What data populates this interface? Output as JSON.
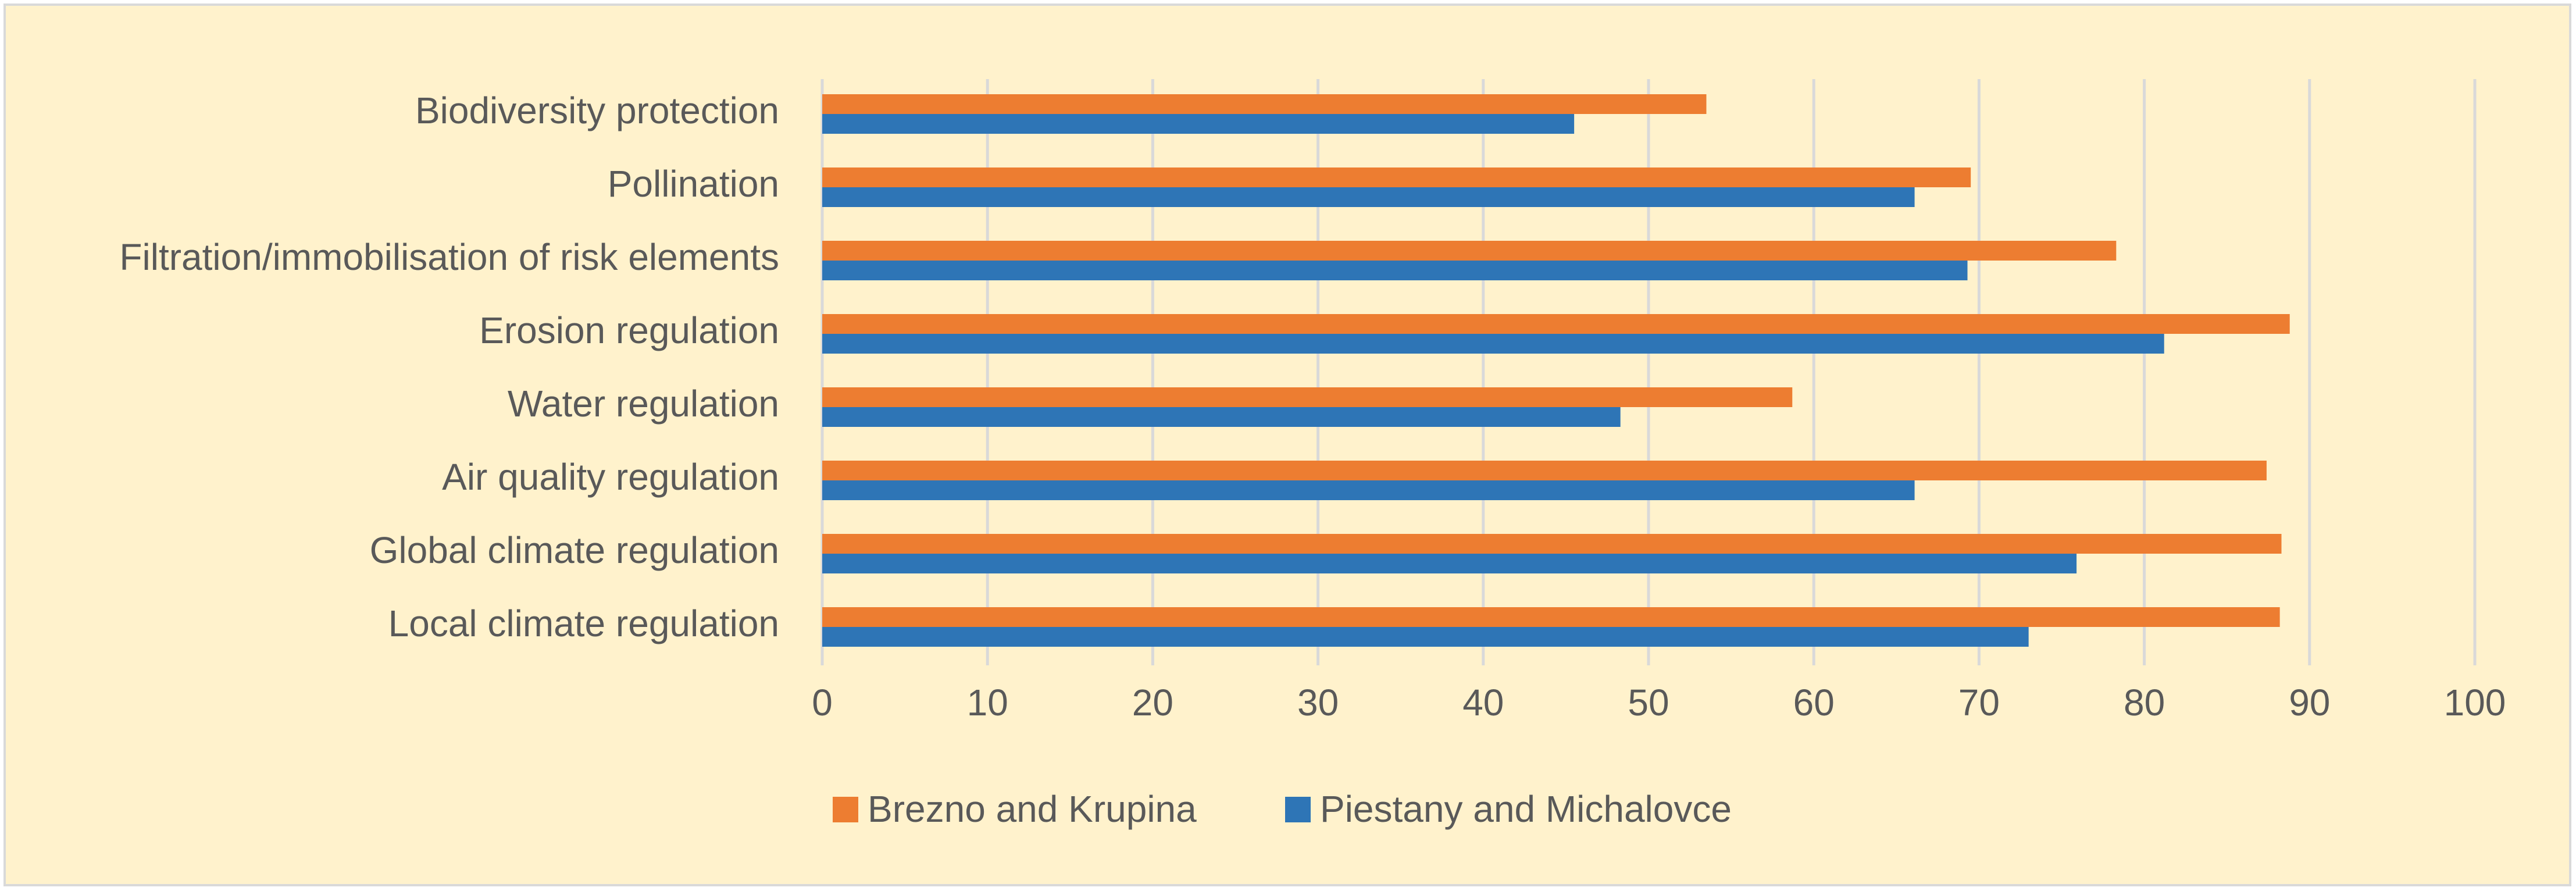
{
  "colors": {
    "background": "#fff2cc",
    "gridline": "#d9d9d9",
    "axis_text": "#595959",
    "series": [
      "#ed7d31",
      "#2e75b6"
    ]
  },
  "chart_data": {
    "type": "bar",
    "orientation": "horizontal",
    "categories": [
      "Biodiversity protection",
      "Pollination",
      "Filtration/immobilisation of risk elements",
      "Erosion regulation",
      "Water regulation",
      "Air quality regulation",
      "Global climate regulation",
      "Local climate regulation"
    ],
    "series": [
      {
        "name": "Brezno and Krupina",
        "values": [
          53.5,
          69.5,
          78.3,
          88.8,
          58.7,
          87.4,
          88.3,
          88.2
        ]
      },
      {
        "name": "Piestany and Michalovce",
        "values": [
          45.5,
          66.1,
          69.3,
          81.2,
          48.3,
          66.1,
          75.9,
          73.0
        ]
      }
    ],
    "xlim": [
      0,
      100
    ],
    "x_ticks": [
      "0",
      "10",
      "20",
      "30",
      "40",
      "50",
      "60",
      "70",
      "80",
      "90",
      "100"
    ],
    "grid": "vertical",
    "legend_position": "bottom"
  }
}
